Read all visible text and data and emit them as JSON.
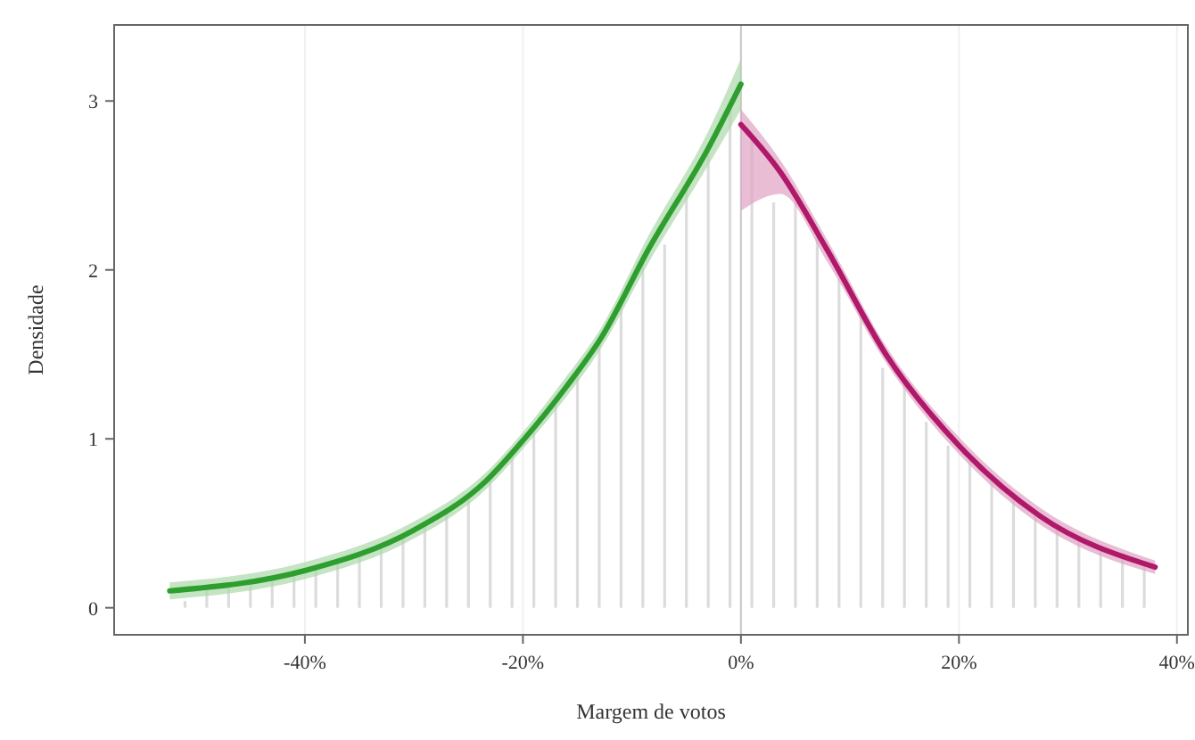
{
  "chart_data": {
    "type": "line",
    "xlabel": "Margem de votos",
    "ylabel": "Densidade",
    "xlim": [
      -57.5,
      41
    ],
    "ylim": [
      -0.16,
      3.45
    ],
    "xticks": [
      {
        "value": -40,
        "label": "-40%"
      },
      {
        "value": -20,
        "label": "-20%"
      },
      {
        "value": 0,
        "label": "0%"
      },
      {
        "value": 20,
        "label": "20%"
      },
      {
        "value": 40,
        "label": "40%"
      }
    ],
    "yticks": [
      0,
      1,
      2,
      3
    ],
    "grid": "x",
    "line_style": "solid",
    "marker": "none",
    "ref_lines": [
      {
        "axis": "x",
        "value": 0,
        "color": "#c8c8c8"
      }
    ],
    "series": [
      {
        "type": "bar",
        "color": "#dcdcdc",
        "x": [
          -51,
          -49,
          -47,
          -45,
          -43,
          -41,
          -39,
          -37,
          -35,
          -33,
          -31,
          -29,
          -27,
          -25,
          -23,
          -21,
          -19,
          -17,
          -15,
          -13,
          -11,
          -9,
          -7,
          -5,
          -3,
          -1,
          1,
          3,
          5,
          7,
          9,
          11,
          13,
          15,
          17,
          19,
          21,
          23,
          25,
          27,
          29,
          31,
          33,
          35,
          37
        ],
        "values": [
          0.04,
          0.13,
          0.15,
          0.17,
          0.19,
          0.21,
          0.24,
          0.27,
          0.31,
          0.36,
          0.42,
          0.5,
          0.58,
          0.67,
          0.78,
          0.9,
          1.05,
          1.2,
          1.38,
          1.58,
          1.8,
          2.05,
          2.15,
          2.5,
          2.7,
          2.95,
          2.8,
          2.4,
          2.4,
          2.2,
          1.95,
          1.75,
          1.42,
          1.35,
          1.1,
          0.96,
          0.9,
          0.78,
          0.67,
          0.58,
          0.5,
          0.42,
          0.35,
          0.3,
          0.26
        ]
      },
      {
        "color": "#2e9e2e",
        "x": [
          -52.4,
          -40,
          -30,
          -23.4,
          -20,
          -16,
          -12.8,
          -8.5,
          -3,
          0
        ],
        "values": [
          0.1,
          0.22,
          0.46,
          0.75,
          0.99,
          1.31,
          1.6,
          2.12,
          2.72,
          3.1
        ],
        "lower": [
          0.05,
          0.17,
          0.41,
          0.7,
          0.94,
          1.25,
          1.54,
          2.04,
          2.62,
          2.95
        ],
        "upper": [
          0.15,
          0.27,
          0.51,
          0.8,
          1.04,
          1.37,
          1.66,
          2.2,
          2.82,
          3.25
        ]
      },
      {
        "color": "#b0186a",
        "x": [
          0,
          3.6,
          7.9,
          13.4,
          20,
          27.5,
          38
        ],
        "values": [
          2.86,
          2.58,
          2.12,
          1.49,
          0.96,
          0.54,
          0.24
        ],
        "lower": [
          2.35,
          2.45,
          2.05,
          1.44,
          0.91,
          0.49,
          0.2
        ],
        "upper": [
          2.95,
          2.65,
          2.18,
          1.54,
          1.01,
          0.59,
          0.28
        ]
      }
    ]
  }
}
